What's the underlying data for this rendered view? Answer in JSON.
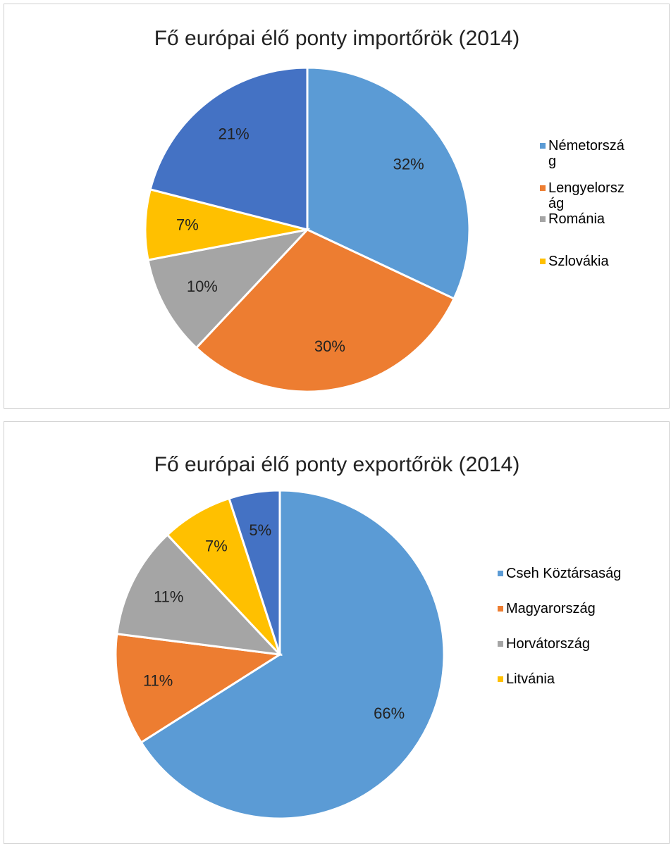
{
  "chart_data": [
    {
      "type": "pie",
      "title": "Fő európai élő ponty importőrök (2014)",
      "categories": [
        "Németország",
        "Lengyelország",
        "Románia",
        "Szlovákia",
        null
      ],
      "values": [
        32,
        30,
        10,
        7,
        21
      ],
      "value_labels": [
        "32%",
        "30%",
        "10%",
        "7%",
        "21%"
      ],
      "colors": [
        "#5b9bd5",
        "#ed7d31",
        "#a5a5a5",
        "#ffc000",
        "#4472c4"
      ]
    },
    {
      "type": "pie",
      "title": "Fő európai élő ponty exportőrök (2014)",
      "categories": [
        "Cseh Köztársaság",
        "Magyarország",
        "Horvátország",
        "Litvánia",
        null
      ],
      "values": [
        66,
        11,
        11,
        7,
        5
      ],
      "value_labels": [
        "66%",
        "11%",
        "11%",
        "7%",
        "5%"
      ],
      "colors": [
        "#5b9bd5",
        "#ed7d31",
        "#a5a5a5",
        "#ffc000",
        "#4472c4"
      ]
    }
  ]
}
